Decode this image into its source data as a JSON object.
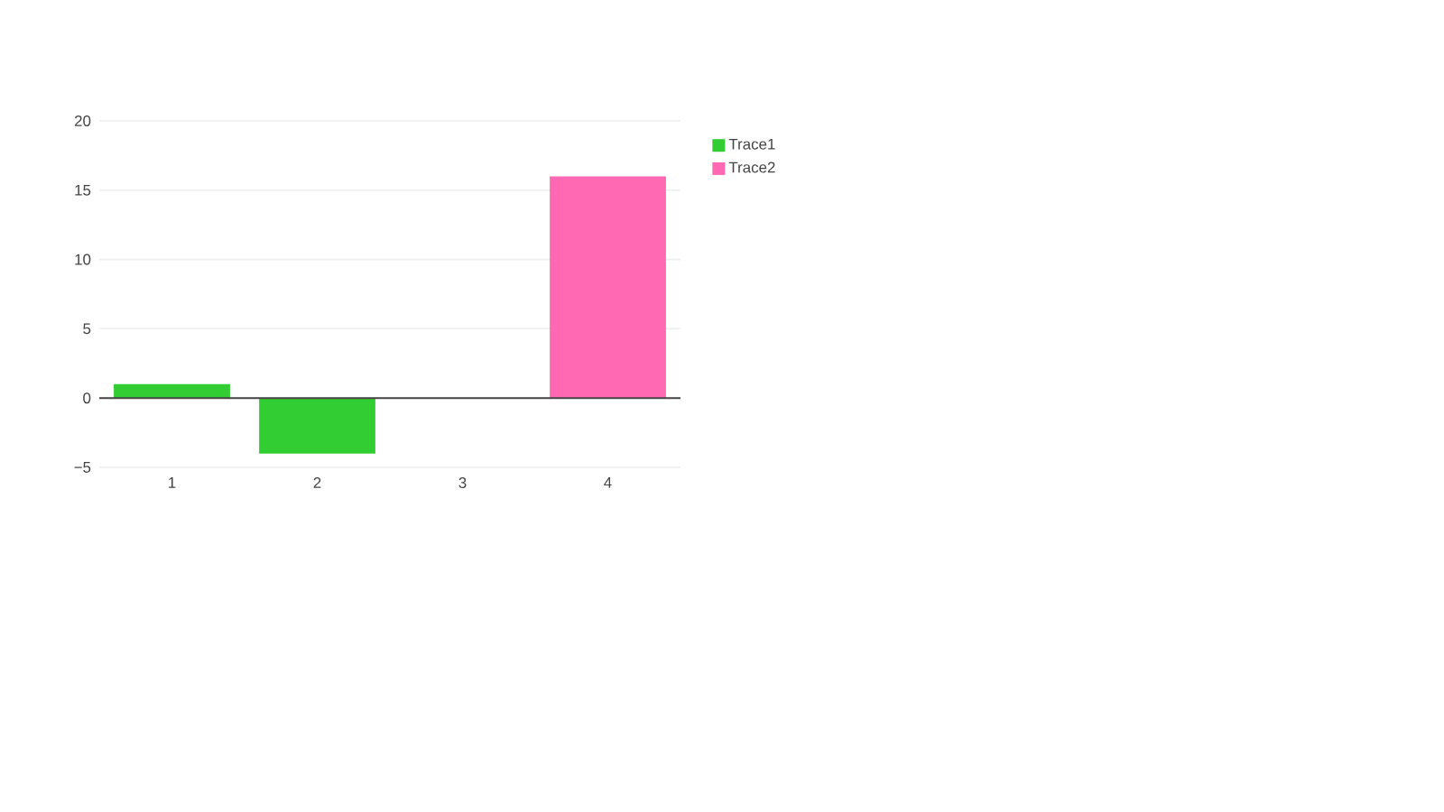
{
  "chart_data": {
    "type": "bar",
    "categories": [
      "1",
      "2",
      "3",
      "4"
    ],
    "series": [
      {
        "name": "Trace1",
        "color": "#32cd32",
        "values": [
          1,
          -4,
          null,
          null
        ]
      },
      {
        "name": "Trace2",
        "color": "#ff69b4",
        "values": [
          null,
          null,
          null,
          16
        ]
      }
    ],
    "ylim": [
      -5,
      20
    ],
    "yticks": [
      {
        "value": -5,
        "label": "−5"
      },
      0,
      5,
      10,
      15,
      20
    ],
    "grid": "y",
    "legend": "top right"
  }
}
